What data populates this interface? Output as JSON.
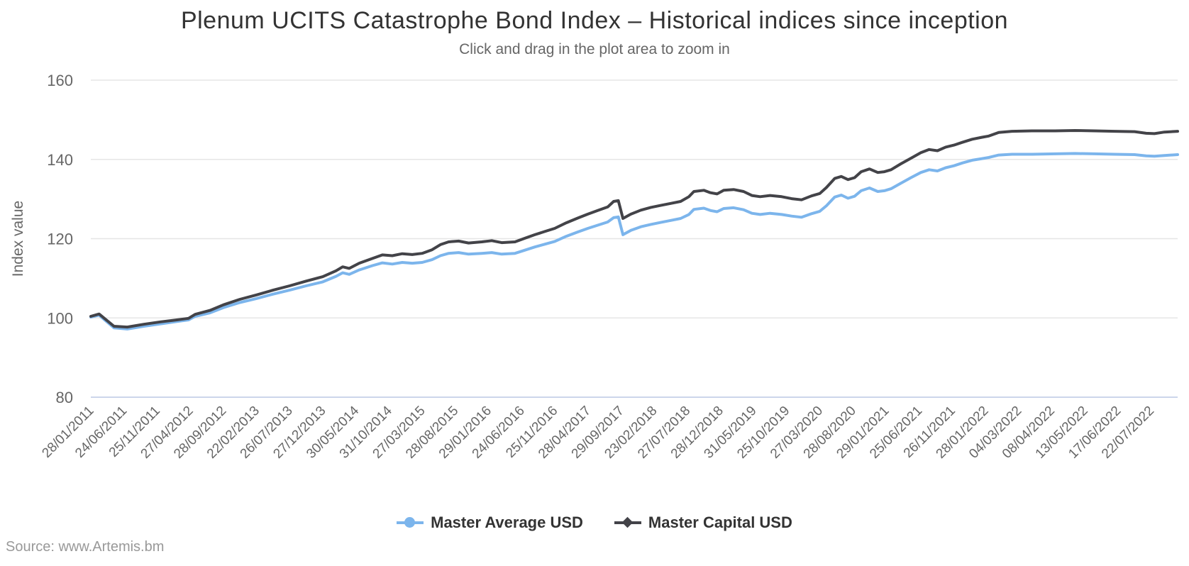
{
  "header": {
    "title": "Plenum UCITS Catastrophe Bond Index – Historical indices since inception",
    "subtitle": "Click and drag in the plot area to zoom in"
  },
  "source": {
    "label": "Source: www.Artemis.bm"
  },
  "chart_data": {
    "type": "line",
    "title": "Plenum UCITS Catastrophe Bond Index – Historical indices since inception",
    "subtitle": "Click and drag in the plot area to zoom in",
    "xlabel": "",
    "ylabel": "Index value",
    "ylim": [
      80,
      160
    ],
    "y_ticks": [
      80,
      100,
      120,
      140,
      160
    ],
    "grid": "horizontal",
    "grid_color": "#e6e6e6",
    "axis_line_color": "#ccd6eb",
    "legend_position": "bottom-center",
    "x_tick_labels": [
      "28/01/2011",
      "24/06/2011",
      "25/11/2011",
      "27/04/2012",
      "28/09/2012",
      "22/02/2013",
      "26/07/2013",
      "27/12/2013",
      "30/05/2014",
      "31/10/2014",
      "27/03/2015",
      "28/08/2015",
      "29/01/2016",
      "24/06/2016",
      "25/11/2016",
      "28/04/2017",
      "29/09/2017",
      "23/02/2018",
      "27/07/2018",
      "28/12/2018",
      "31/05/2019",
      "25/10/2019",
      "27/03/2020",
      "28/08/2020",
      "29/01/2021",
      "25/06/2021",
      "26/11/2021",
      "28/01/2022",
      "04/03/2022",
      "08/04/2022",
      "13/05/2022",
      "17/06/2022",
      "22/07/2022"
    ],
    "x_max_index": 32.8,
    "series": [
      {
        "name": "Master Average USD",
        "color": "#7cb5ec",
        "marker": "circle",
        "points": [
          [
            0,
            100.2
          ],
          [
            0.25,
            100.7
          ],
          [
            0.7,
            97.5
          ],
          [
            1.1,
            97.2
          ],
          [
            1.6,
            97.9
          ],
          [
            2.1,
            98.5
          ],
          [
            2.6,
            99.1
          ],
          [
            2.95,
            99.5
          ],
          [
            3.15,
            100.4
          ],
          [
            3.6,
            101.3
          ],
          [
            4,
            102.6
          ],
          [
            4.5,
            103.9
          ],
          [
            5,
            104.9
          ],
          [
            5.5,
            106.0
          ],
          [
            6,
            107.0
          ],
          [
            6.5,
            108.1
          ],
          [
            7,
            109.1
          ],
          [
            7.4,
            110.5
          ],
          [
            7.6,
            111.4
          ],
          [
            7.8,
            111.0
          ],
          [
            8.1,
            112.1
          ],
          [
            8.5,
            113.2
          ],
          [
            8.8,
            113.9
          ],
          [
            9.1,
            113.6
          ],
          [
            9.4,
            114.0
          ],
          [
            9.7,
            113.8
          ],
          [
            10,
            114.0
          ],
          [
            10.3,
            114.7
          ],
          [
            10.55,
            115.7
          ],
          [
            10.8,
            116.3
          ],
          [
            11.1,
            116.5
          ],
          [
            11.4,
            116.1
          ],
          [
            11.8,
            116.3
          ],
          [
            12.1,
            116.5
          ],
          [
            12.4,
            116.1
          ],
          [
            12.8,
            116.3
          ],
          [
            13.1,
            117.1
          ],
          [
            13.4,
            117.9
          ],
          [
            13.7,
            118.6
          ],
          [
            14,
            119.3
          ],
          [
            14.35,
            120.6
          ],
          [
            14.7,
            121.7
          ],
          [
            15,
            122.6
          ],
          [
            15.3,
            123.4
          ],
          [
            15.6,
            124.2
          ],
          [
            15.78,
            125.3
          ],
          [
            15.92,
            125.5
          ],
          [
            16.06,
            121.0
          ],
          [
            16.3,
            122.1
          ],
          [
            16.6,
            123.0
          ],
          [
            16.9,
            123.6
          ],
          [
            17.2,
            124.1
          ],
          [
            17.5,
            124.6
          ],
          [
            17.8,
            125.1
          ],
          [
            18.05,
            126.1
          ],
          [
            18.2,
            127.4
          ],
          [
            18.5,
            127.7
          ],
          [
            18.7,
            127.1
          ],
          [
            18.9,
            126.8
          ],
          [
            19.1,
            127.6
          ],
          [
            19.4,
            127.8
          ],
          [
            19.7,
            127.3
          ],
          [
            19.95,
            126.4
          ],
          [
            20.2,
            126.1
          ],
          [
            20.5,
            126.4
          ],
          [
            20.85,
            126.1
          ],
          [
            21.15,
            125.7
          ],
          [
            21.45,
            125.4
          ],
          [
            21.75,
            126.3
          ],
          [
            22,
            126.9
          ],
          [
            22.2,
            128.3
          ],
          [
            22.45,
            130.5
          ],
          [
            22.65,
            131.0
          ],
          [
            22.85,
            130.2
          ],
          [
            23.05,
            130.7
          ],
          [
            23.25,
            132.1
          ],
          [
            23.5,
            132.8
          ],
          [
            23.75,
            131.9
          ],
          [
            23.95,
            132.1
          ],
          [
            24.15,
            132.6
          ],
          [
            24.45,
            134.0
          ],
          [
            24.75,
            135.4
          ],
          [
            25.05,
            136.7
          ],
          [
            25.3,
            137.4
          ],
          [
            25.55,
            137.1
          ],
          [
            25.8,
            137.9
          ],
          [
            26.05,
            138.4
          ],
          [
            26.3,
            139.1
          ],
          [
            26.6,
            139.8
          ],
          [
            26.9,
            140.2
          ],
          [
            27.1,
            140.5
          ],
          [
            27.4,
            141.1
          ],
          [
            27.8,
            141.3
          ],
          [
            28.4,
            141.3
          ],
          [
            29.1,
            141.4
          ],
          [
            29.7,
            141.5
          ],
          [
            30.3,
            141.4
          ],
          [
            30.9,
            141.3
          ],
          [
            31.5,
            141.2
          ],
          [
            31.85,
            140.9
          ],
          [
            32.1,
            140.8
          ],
          [
            32.4,
            141.0
          ],
          [
            32.8,
            141.2
          ]
        ]
      },
      {
        "name": "Master Capital USD",
        "color": "#434348",
        "marker": "diamond",
        "points": [
          [
            0,
            100.4
          ],
          [
            0.25,
            101.0
          ],
          [
            0.7,
            97.9
          ],
          [
            1.1,
            97.7
          ],
          [
            1.6,
            98.4
          ],
          [
            2.1,
            99.0
          ],
          [
            2.6,
            99.5
          ],
          [
            2.95,
            99.9
          ],
          [
            3.15,
            100.9
          ],
          [
            3.6,
            101.9
          ],
          [
            4,
            103.3
          ],
          [
            4.5,
            104.7
          ],
          [
            5,
            105.8
          ],
          [
            5.5,
            107.0
          ],
          [
            6,
            108.1
          ],
          [
            6.5,
            109.3
          ],
          [
            7,
            110.4
          ],
          [
            7.4,
            111.9
          ],
          [
            7.6,
            112.9
          ],
          [
            7.8,
            112.5
          ],
          [
            8.1,
            113.8
          ],
          [
            8.5,
            115.0
          ],
          [
            8.8,
            115.9
          ],
          [
            9.1,
            115.7
          ],
          [
            9.4,
            116.2
          ],
          [
            9.7,
            116.0
          ],
          [
            10,
            116.3
          ],
          [
            10.3,
            117.2
          ],
          [
            10.55,
            118.5
          ],
          [
            10.8,
            119.2
          ],
          [
            11.1,
            119.4
          ],
          [
            11.4,
            118.9
          ],
          [
            11.8,
            119.2
          ],
          [
            12.1,
            119.5
          ],
          [
            12.4,
            119.0
          ],
          [
            12.8,
            119.2
          ],
          [
            13.1,
            120.1
          ],
          [
            13.4,
            121.0
          ],
          [
            13.7,
            121.8
          ],
          [
            14,
            122.6
          ],
          [
            14.35,
            124.0
          ],
          [
            14.7,
            125.2
          ],
          [
            15,
            126.2
          ],
          [
            15.3,
            127.1
          ],
          [
            15.6,
            128.0
          ],
          [
            15.78,
            129.4
          ],
          [
            15.92,
            129.6
          ],
          [
            16.06,
            125.1
          ],
          [
            16.3,
            126.2
          ],
          [
            16.6,
            127.2
          ],
          [
            16.9,
            127.9
          ],
          [
            17.2,
            128.4
          ],
          [
            17.5,
            128.9
          ],
          [
            17.8,
            129.4
          ],
          [
            18.05,
            130.6
          ],
          [
            18.2,
            131.9
          ],
          [
            18.5,
            132.2
          ],
          [
            18.7,
            131.6
          ],
          [
            18.9,
            131.3
          ],
          [
            19.1,
            132.2
          ],
          [
            19.4,
            132.4
          ],
          [
            19.7,
            131.9
          ],
          [
            19.95,
            130.9
          ],
          [
            20.2,
            130.6
          ],
          [
            20.5,
            130.9
          ],
          [
            20.85,
            130.6
          ],
          [
            21.15,
            130.1
          ],
          [
            21.45,
            129.8
          ],
          [
            21.75,
            130.8
          ],
          [
            22,
            131.4
          ],
          [
            22.2,
            132.9
          ],
          [
            22.45,
            135.2
          ],
          [
            22.65,
            135.7
          ],
          [
            22.85,
            134.9
          ],
          [
            23.05,
            135.4
          ],
          [
            23.25,
            136.9
          ],
          [
            23.5,
            137.6
          ],
          [
            23.75,
            136.7
          ],
          [
            23.95,
            136.9
          ],
          [
            24.15,
            137.4
          ],
          [
            24.45,
            138.9
          ],
          [
            24.75,
            140.3
          ],
          [
            25.05,
            141.7
          ],
          [
            25.3,
            142.5
          ],
          [
            25.55,
            142.2
          ],
          [
            25.8,
            143.1
          ],
          [
            26.05,
            143.6
          ],
          [
            26.3,
            144.3
          ],
          [
            26.6,
            145.1
          ],
          [
            26.9,
            145.6
          ],
          [
            27.1,
            145.9
          ],
          [
            27.4,
            146.8
          ],
          [
            27.8,
            147.1
          ],
          [
            28.4,
            147.2
          ],
          [
            29.1,
            147.2
          ],
          [
            29.7,
            147.3
          ],
          [
            30.3,
            147.2
          ],
          [
            30.9,
            147.1
          ],
          [
            31.5,
            147.0
          ],
          [
            31.85,
            146.6
          ],
          [
            32.1,
            146.5
          ],
          [
            32.4,
            146.9
          ],
          [
            32.8,
            147.1
          ]
        ]
      }
    ]
  }
}
